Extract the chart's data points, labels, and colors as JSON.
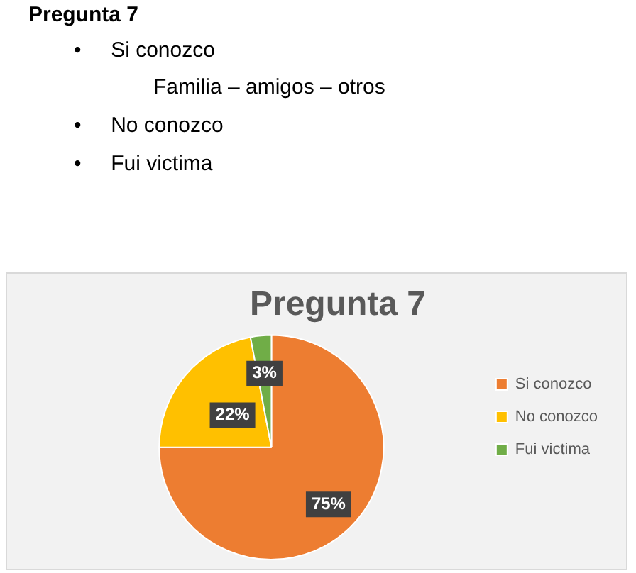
{
  "chart_data": {
    "type": "pie",
    "title": "Pregunta 7",
    "annotations": [
      "Pregunta 7",
      "•     Si conozco",
      "Familia – amigos – otros",
      "•     No conozco",
      "•     Fui victima"
    ],
    "categories": [
      "Si conozco",
      "No conozco",
      "Fui victima"
    ],
    "values": [
      75,
      22,
      3
    ],
    "value_labels": [
      "75%",
      "22%",
      "3%"
    ],
    "colors": [
      "#ed7d31",
      "#ffc000",
      "#70ad47"
    ],
    "legend": "right"
  }
}
